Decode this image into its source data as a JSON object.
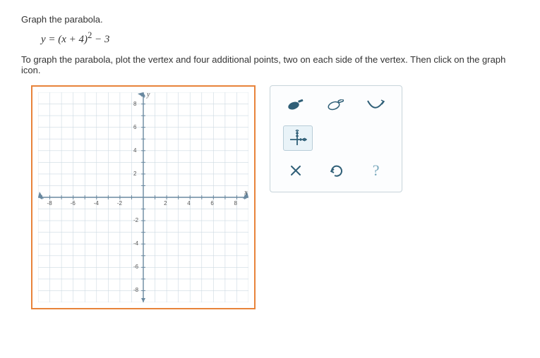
{
  "problem": {
    "title": "Graph the parabola.",
    "equation_html": "y = (x + 4)<sup style='font-style:normal'>2</sup> − 3",
    "instruction": "To graph the parabola, plot the vertex and four additional points, two on each side of the vertex. Then click on the graph icon."
  },
  "graph": {
    "xmin": -9,
    "xmax": 9,
    "ymin": -9,
    "ymax": 9,
    "xtick_step": 1,
    "ytick_step": 1,
    "xlabel_step": 2,
    "ylabel_step": 2,
    "axis_color": "#6a89a0",
    "grid_color": "#cdd9e2",
    "background": "#ffffff",
    "x_axis_name": "x",
    "y_axis_name": "y",
    "frame_color": "#e8833a"
  },
  "toolbox": {
    "row1": [
      {
        "name": "fill-tool",
        "type": "eraser-fill"
      },
      {
        "name": "pencil-tool",
        "type": "eraser-outline"
      },
      {
        "name": "curve-tool",
        "type": "curve"
      }
    ],
    "row2": [
      {
        "name": "graph-icon-tool",
        "type": "graph-icon",
        "selected": true
      }
    ],
    "row3": [
      {
        "name": "clear-tool",
        "type": "x"
      },
      {
        "name": "undo-tool",
        "type": "undo"
      },
      {
        "name": "help-tool",
        "type": "question"
      }
    ],
    "icon_color": "#2f5f77",
    "help_color": "#7aa9bd"
  }
}
